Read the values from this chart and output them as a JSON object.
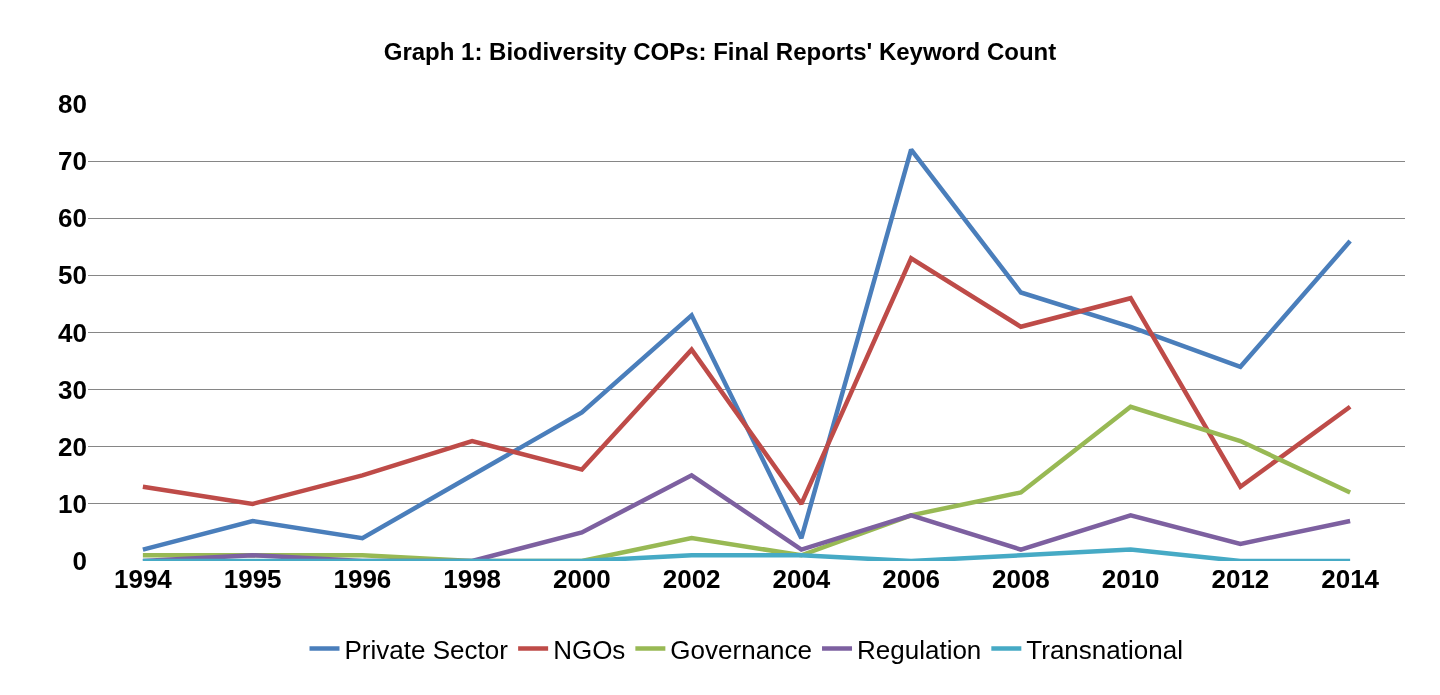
{
  "chart_data": {
    "type": "line",
    "title": "Graph 1: Biodiversity COPs: Final Reports' Keyword Count",
    "categories": [
      "1994",
      "1995",
      "1996",
      "1998",
      "2000",
      "2002",
      "2004",
      "2006",
      "2008",
      "2010",
      "2012",
      "2014"
    ],
    "series": [
      {
        "name": "Private Sector",
        "color": "#4a7ebb",
        "values": [
          2,
          7,
          4,
          15,
          26,
          43,
          4,
          72,
          47,
          41,
          34,
          56
        ]
      },
      {
        "name": "NGOs",
        "color": "#be4b48",
        "values": [
          13,
          10,
          15,
          21,
          16,
          37,
          10,
          53,
          41,
          46,
          13,
          27
        ]
      },
      {
        "name": "Governance",
        "color": "#98b954",
        "values": [
          1,
          1,
          1,
          0,
          0,
          4,
          1,
          8,
          12,
          27,
          21,
          12
        ]
      },
      {
        "name": "Regulation",
        "color": "#7d60a0",
        "values": [
          0,
          1,
          0,
          0,
          5,
          15,
          2,
          8,
          2,
          8,
          3,
          7
        ]
      },
      {
        "name": "Transnational",
        "color": "#46aac5",
        "values": [
          0,
          0,
          0,
          0,
          0,
          1,
          1,
          0,
          1,
          2,
          0,
          0
        ]
      }
    ],
    "ylim": [
      0,
      80
    ],
    "yticks": [
      0,
      10,
      20,
      30,
      40,
      50,
      60,
      70,
      80
    ],
    "grid": "y",
    "legend": "bottom",
    "marker": "none",
    "line_style": "solid"
  }
}
